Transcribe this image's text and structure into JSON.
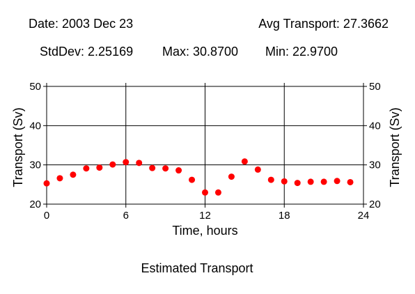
{
  "header": {
    "date": "Date: 2003 Dec 23",
    "avg": "Avg Transport: 27.3662",
    "stddev": "StdDev: 2.25169",
    "max": "Max: 30.8700",
    "min": "Min: 22.9700"
  },
  "caption": "Estimated Transport",
  "colors": {
    "marker": "#ff0000",
    "axes": "#000000",
    "background": "#ffffff"
  },
  "chart_data": {
    "type": "scatter",
    "title": "",
    "xlabel": "Time, hours",
    "ylabel": "Transport (Sv)",
    "ylabel_right": "Transport (Sv)",
    "xlim": [
      0,
      24
    ],
    "ylim": [
      20,
      50
    ],
    "xticks": [
      0,
      6,
      12,
      18,
      24
    ],
    "yticks": [
      20,
      30,
      40,
      50
    ],
    "grid": true,
    "series": [
      {
        "x": [
          0,
          1,
          2,
          3,
          4,
          5,
          6,
          7,
          8,
          9,
          10,
          11,
          12,
          13,
          14,
          15,
          16,
          17,
          18,
          19,
          20,
          21,
          22,
          23
        ],
        "y": [
          25.3,
          26.6,
          27.5,
          29.1,
          29.3,
          30.1,
          30.7,
          30.5,
          29.2,
          29.1,
          28.6,
          26.2,
          22.97,
          22.97,
          27.0,
          30.87,
          28.8,
          26.2,
          25.8,
          25.4,
          25.7,
          25.7,
          25.9,
          25.6
        ]
      }
    ]
  }
}
